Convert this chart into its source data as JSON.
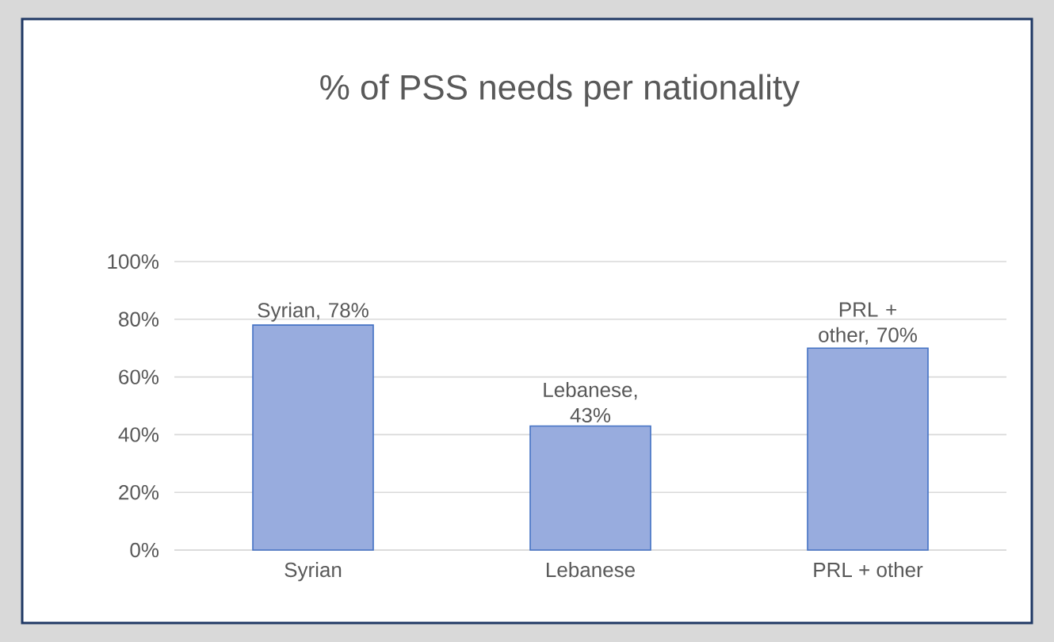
{
  "chart_data": {
    "type": "bar",
    "title": "% of PSS needs per nationality",
    "categories": [
      "Syrian",
      "Lebanese",
      "PRL + other"
    ],
    "values": [
      78,
      43,
      70
    ],
    "color": "#98acde",
    "value_labels": [
      "Syrian, 78%",
      "Lebanese, 43%",
      "PRL + other, 70%"
    ],
    "ylim": [
      0,
      100
    ],
    "yticks": [
      {
        "value": 0,
        "label": "0%"
      },
      {
        "value": 20,
        "label": "20%"
      },
      {
        "value": 40,
        "label": "40%"
      },
      {
        "value": 60,
        "label": "60%"
      },
      {
        "value": 80,
        "label": "80%"
      },
      {
        "value": 100,
        "label": "100%"
      }
    ],
    "grid": "y"
  }
}
